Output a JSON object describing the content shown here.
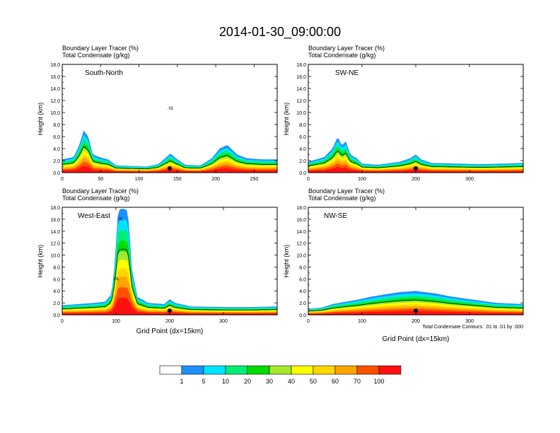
{
  "title": "2014-01-30_09:00:00",
  "colors": {
    "levels": [
      "#ffffff",
      "#1e90ff",
      "#00e5ff",
      "#00ee76",
      "#00dd00",
      "#a6e82f",
      "#ffff00",
      "#ffd700",
      "#ffa500",
      "#ff5000",
      "#ff1010"
    ],
    "contour": "#000000"
  },
  "chart_data": [
    {
      "type": "heatmap",
      "title_line1": "Boundary Layer Tracer   (%)",
      "title_line2": "Total Condensate   (g/kg)",
      "panel_label": "South-North",
      "ylabel": "Height (km)",
      "xlabel": "",
      "xlim": [
        0,
        280
      ],
      "ylim": [
        0,
        18
      ],
      "xticks": [
        "0",
        "50",
        "100",
        "150",
        "200",
        "250"
      ],
      "xtick_values": [
        0,
        50,
        100,
        150,
        200,
        250
      ],
      "yticks": [
        "0.0",
        "2.0",
        "4.0",
        "6.0",
        "8.0",
        "10.0",
        "12.0",
        "14.0",
        "16.0",
        "18.0"
      ],
      "contour_labels": [
        {
          "text": ".01",
          "x": 141,
          "y": 10.5
        }
      ],
      "marker_x": 140,
      "profile": [
        [
          0,
          2.2
        ],
        [
          15,
          2.6
        ],
        [
          22,
          4.5
        ],
        [
          28,
          7.0
        ],
        [
          34,
          6.0
        ],
        [
          40,
          3.0
        ],
        [
          50,
          2.5
        ],
        [
          60,
          2.2
        ],
        [
          70,
          1.2
        ],
        [
          90,
          1.1
        ],
        [
          110,
          1.0
        ],
        [
          125,
          1.4
        ],
        [
          135,
          2.5
        ],
        [
          141,
          3.2
        ],
        [
          147,
          2.5
        ],
        [
          160,
          1.3
        ],
        [
          180,
          1.2
        ],
        [
          195,
          2.4
        ],
        [
          205,
          4.0
        ],
        [
          215,
          4.6
        ],
        [
          228,
          3.0
        ],
        [
          240,
          2.4
        ],
        [
          260,
          2.2
        ],
        [
          280,
          2.2
        ]
      ]
    },
    {
      "type": "heatmap",
      "title_line1": "Boundary Layer Tracer   (%)",
      "title_line2": "Total Condensate   (g/kg)",
      "panel_label": "SW-NE",
      "ylabel": "Height (km)",
      "xlabel": "",
      "xlim": [
        0,
        400
      ],
      "ylim": [
        0,
        18
      ],
      "xticks": [
        "0",
        "100",
        "200",
        "300"
      ],
      "xtick_values": [
        0,
        100,
        200,
        300
      ],
      "yticks": [
        "0.0",
        "2.0",
        "4.0",
        "6.0",
        "8.0",
        "10.0",
        "12.0",
        "14.0",
        "16.0",
        "18.0"
      ],
      "contour_labels": [],
      "marker_x": 200,
      "profile": [
        [
          0,
          1.8
        ],
        [
          15,
          2.2
        ],
        [
          30,
          2.6
        ],
        [
          45,
          4.0
        ],
        [
          55,
          6.0
        ],
        [
          62,
          4.5
        ],
        [
          70,
          5.2
        ],
        [
          78,
          3.0
        ],
        [
          90,
          2.4
        ],
        [
          100,
          1.5
        ],
        [
          130,
          1.3
        ],
        [
          170,
          1.8
        ],
        [
          190,
          2.4
        ],
        [
          200,
          3.0
        ],
        [
          210,
          2.2
        ],
        [
          230,
          1.6
        ],
        [
          280,
          1.5
        ],
        [
          320,
          1.4
        ],
        [
          360,
          1.5
        ],
        [
          400,
          1.6
        ]
      ]
    },
    {
      "type": "heatmap",
      "title_line1": "Boundary Layer Tracer   (%)",
      "title_line2": "Total Condensate   (g/kg)",
      "panel_label": "West-East",
      "ylabel": "Height (km)",
      "xlabel": "Grid Point (dx=15km)",
      "xlim": [
        0,
        400
      ],
      "ylim": [
        0,
        18
      ],
      "xticks": [
        "0",
        "100",
        "200",
        "300"
      ],
      "xtick_values": [
        0,
        100,
        200,
        300
      ],
      "yticks": [
        "0.0",
        "2.0",
        "4.0",
        "6.0",
        "8.0",
        "10.0",
        "12.0",
        "14.0",
        "16.0",
        "18.0"
      ],
      "contour_labels": [
        {
          "text": ".01",
          "x": 108,
          "y": 15.8
        },
        {
          "text": ".01",
          "x": 100,
          "y": 5.8
        }
      ],
      "marker_x": 200,
      "profile": [
        [
          0,
          1.6
        ],
        [
          30,
          1.8
        ],
        [
          60,
          2.0
        ],
        [
          80,
          2.2
        ],
        [
          92,
          3.5
        ],
        [
          98,
          9.0
        ],
        [
          104,
          17.5
        ],
        [
          112,
          17.8
        ],
        [
          122,
          17.5
        ],
        [
          130,
          7.5
        ],
        [
          140,
          3.0
        ],
        [
          160,
          2.0
        ],
        [
          190,
          1.8
        ],
        [
          200,
          2.6
        ],
        [
          210,
          2.0
        ],
        [
          240,
          1.4
        ],
        [
          300,
          1.3
        ],
        [
          350,
          1.3
        ],
        [
          400,
          1.4
        ]
      ]
    },
    {
      "type": "heatmap",
      "title_line1": "Boundary Layer Tracer   (%)",
      "title_line2": "Total Condensate   (g/kg)",
      "panel_label": "NW-SE",
      "ylabel": "Height (km)",
      "xlabel": "Grid Point (dx=15km)",
      "xlim": [
        0,
        400
      ],
      "ylim": [
        0,
        18
      ],
      "xticks": [
        "0",
        "100",
        "200",
        "300"
      ],
      "xtick_values": [
        0,
        100,
        200,
        300
      ],
      "yticks": [
        "0.0",
        "2.0",
        "4.0",
        "6.0",
        "8.0",
        "10.0",
        "12.0",
        "14.0",
        "16.0",
        "18.0"
      ],
      "contour_labels": [],
      "marker_x": 200,
      "profile": [
        [
          0,
          1.0
        ],
        [
          25,
          1.2
        ],
        [
          45,
          1.8
        ],
        [
          70,
          2.2
        ],
        [
          95,
          2.6
        ],
        [
          115,
          3.0
        ],
        [
          140,
          3.4
        ],
        [
          170,
          3.8
        ],
        [
          200,
          4.0
        ],
        [
          235,
          3.6
        ],
        [
          270,
          3.0
        ],
        [
          310,
          2.5
        ],
        [
          350,
          2.0
        ],
        [
          400,
          1.8
        ]
      ]
    }
  ],
  "footnote": "Total Condensate Contours: .01 to .01 by .000",
  "legend": {
    "labels": [
      "1",
      "5",
      "10",
      "20",
      "30",
      "40",
      "50",
      "60",
      "70",
      "100"
    ]
  }
}
